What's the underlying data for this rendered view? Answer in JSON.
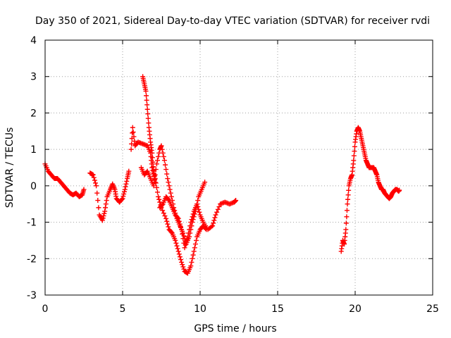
{
  "chart_data": {
    "type": "scatter",
    "title": "Day 350 of 2021, Sidereal Day-to-day VTEC variation (SDTVAR) for receiver rvdi",
    "xlabel": "GPS time / hours",
    "ylabel": "SDTVAR / TECUs",
    "xlim": [
      0,
      25
    ],
    "ylim": [
      -3,
      4
    ],
    "xticks": [
      "0",
      "5",
      "10",
      "15",
      "20",
      "25"
    ],
    "yticks": [
      "-3",
      "-2",
      "-1",
      "0",
      "1",
      "2",
      "3",
      "4"
    ],
    "xtick_values": [
      0,
      5,
      10,
      15,
      20,
      25
    ],
    "ytick_values": [
      -3,
      -2,
      -1,
      0,
      1,
      2,
      3,
      4
    ],
    "grid": true,
    "marker": "+",
    "color": "#ff0000",
    "series": [
      {
        "segments": [
          [
            [
              0.0,
              0.6
            ],
            [
              0.2,
              0.4
            ],
            [
              0.4,
              0.3
            ],
            [
              0.6,
              0.2
            ],
            [
              0.8,
              0.2
            ],
            [
              1.0,
              0.1
            ],
            [
              1.2,
              0.0
            ],
            [
              1.4,
              -0.1
            ],
            [
              1.6,
              -0.2
            ],
            [
              1.8,
              -0.25
            ],
            [
              2.0,
              -0.2
            ],
            [
              2.2,
              -0.3
            ],
            [
              2.4,
              -0.25
            ],
            [
              2.5,
              -0.1
            ]
          ],
          [
            [
              2.9,
              0.35
            ],
            [
              3.1,
              0.3
            ],
            [
              3.3,
              0.0
            ],
            [
              3.5,
              -0.8
            ],
            [
              3.7,
              -0.95
            ],
            [
              3.85,
              -0.7
            ],
            [
              4.0,
              -0.3
            ],
            [
              4.2,
              -0.1
            ],
            [
              4.35,
              0.05
            ],
            [
              4.5,
              -0.1
            ],
            [
              4.6,
              -0.35
            ],
            [
              4.8,
              -0.45
            ],
            [
              5.0,
              -0.35
            ],
            [
              5.15,
              -0.1
            ],
            [
              5.3,
              0.2
            ],
            [
              5.4,
              0.4
            ]
          ],
          [
            [
              5.55,
              1.0
            ],
            [
              5.65,
              1.6
            ],
            [
              5.8,
              1.1
            ],
            [
              6.0,
              1.2
            ],
            [
              6.3,
              1.15
            ],
            [
              6.6,
              1.1
            ],
            [
              6.8,
              0.9
            ],
            [
              6.9,
              0.5
            ],
            [
              7.1,
              0.2
            ],
            [
              7.3,
              -0.3
            ],
            [
              7.5,
              -0.6
            ],
            [
              7.8,
              -0.9
            ],
            [
              8.0,
              -1.2
            ],
            [
              8.2,
              -1.3
            ],
            [
              8.4,
              -1.5
            ],
            [
              8.6,
              -1.8
            ],
            [
              8.8,
              -2.1
            ],
            [
              9.0,
              -2.35
            ],
            [
              9.2,
              -2.4
            ],
            [
              9.4,
              -2.2
            ],
            [
              9.6,
              -1.8
            ],
            [
              9.8,
              -1.4
            ],
            [
              10.0,
              -1.2
            ],
            [
              10.2,
              -1.1
            ],
            [
              10.4,
              -1.2
            ]
          ],
          [
            [
              6.3,
              3.0
            ],
            [
              6.4,
              2.8
            ],
            [
              6.5,
              2.6
            ],
            [
              6.6,
              2.1
            ],
            [
              6.7,
              1.6
            ],
            [
              6.8,
              1.2
            ],
            [
              6.9,
              0.9
            ],
            [
              7.0,
              0.4
            ],
            [
              7.1,
              0.1
            ]
          ],
          [
            [
              6.2,
              0.5
            ],
            [
              6.4,
              0.3
            ],
            [
              6.6,
              0.4
            ],
            [
              6.8,
              0.2
            ],
            [
              7.0,
              0.0
            ],
            [
              7.2,
              0.6
            ],
            [
              7.4,
              1.0
            ],
            [
              7.5,
              1.1
            ],
            [
              7.7,
              0.7
            ],
            [
              7.9,
              0.2
            ],
            [
              8.1,
              -0.2
            ],
            [
              8.3,
              -0.6
            ],
            [
              8.5,
              -0.9
            ],
            [
              8.7,
              -1.1
            ],
            [
              8.9,
              -1.3
            ],
            [
              9.1,
              -1.6
            ],
            [
              9.3,
              -1.4
            ],
            [
              9.5,
              -1.0
            ],
            [
              9.7,
              -0.7
            ],
            [
              9.9,
              -0.3
            ],
            [
              10.1,
              -0.1
            ],
            [
              10.3,
              0.1
            ]
          ],
          [
            [
              7.4,
              -0.6
            ],
            [
              7.6,
              -0.5
            ],
            [
              7.8,
              -0.3
            ],
            [
              8.0,
              -0.4
            ],
            [
              8.2,
              -0.6
            ],
            [
              8.4,
              -0.8
            ],
            [
              8.6,
              -0.9
            ],
            [
              8.8,
              -1.2
            ],
            [
              9.0,
              -1.7
            ],
            [
              9.2,
              -1.4
            ],
            [
              9.4,
              -1.0
            ],
            [
              9.6,
              -0.7
            ],
            [
              9.8,
              -0.5
            ],
            [
              10.0,
              -0.8
            ],
            [
              10.2,
              -1.0
            ],
            [
              10.5,
              -1.2
            ],
            [
              10.8,
              -1.1
            ],
            [
              11.0,
              -0.8
            ],
            [
              11.3,
              -0.5
            ],
            [
              11.6,
              -0.45
            ],
            [
              11.9,
              -0.5
            ],
            [
              12.2,
              -0.45
            ],
            [
              12.3,
              -0.4
            ]
          ],
          [
            [
              19.1,
              -1.8
            ],
            [
              19.2,
              -1.5
            ],
            [
              19.3,
              -1.6
            ],
            [
              19.4,
              -1.2
            ],
            [
              19.5,
              -0.5
            ],
            [
              19.6,
              0.0
            ],
            [
              19.7,
              0.2
            ],
            [
              19.8,
              0.3
            ],
            [
              19.9,
              0.7
            ],
            [
              20.0,
              1.2
            ],
            [
              20.1,
              1.5
            ],
            [
              20.2,
              1.6
            ],
            [
              20.3,
              1.5
            ],
            [
              20.4,
              1.3
            ],
            [
              20.5,
              1.1
            ],
            [
              20.6,
              0.9
            ],
            [
              20.7,
              0.7
            ],
            [
              20.8,
              0.6
            ],
            [
              20.9,
              0.5
            ],
            [
              21.0,
              0.5
            ],
            [
              21.2,
              0.5
            ],
            [
              21.3,
              0.4
            ],
            [
              21.4,
              0.3
            ],
            [
              21.5,
              0.1
            ],
            [
              21.6,
              0.0
            ],
            [
              21.7,
              -0.1
            ],
            [
              21.8,
              -0.1
            ],
            [
              21.9,
              -0.2
            ],
            [
              22.0,
              -0.25
            ],
            [
              22.1,
              -0.3
            ],
            [
              22.2,
              -0.35
            ],
            [
              22.3,
              -0.3
            ],
            [
              22.4,
              -0.2
            ],
            [
              22.5,
              -0.15
            ],
            [
              22.6,
              -0.1
            ],
            [
              22.7,
              -0.1
            ],
            [
              22.8,
              -0.15
            ],
            [
              22.85,
              -0.12
            ]
          ]
        ]
      }
    ]
  }
}
